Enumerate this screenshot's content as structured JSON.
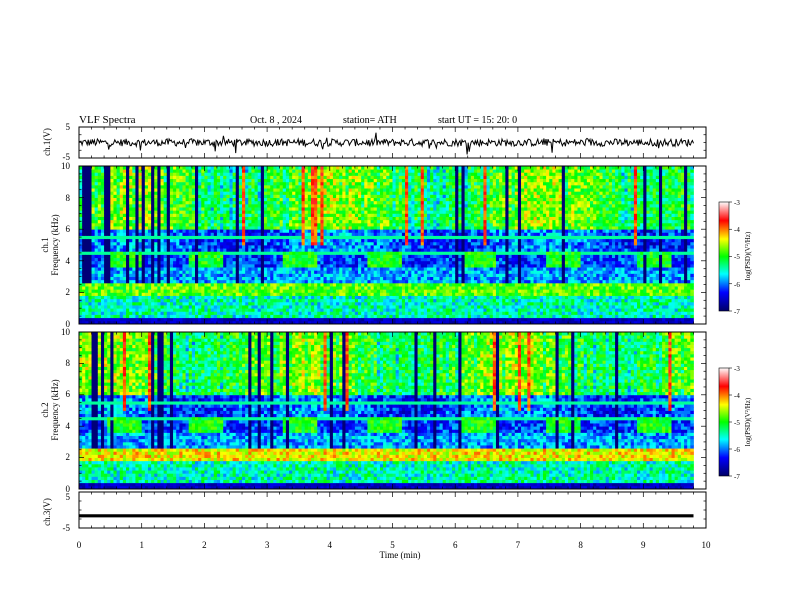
{
  "header": {
    "title": "VLF  Spectra",
    "date": "Oct. 8  , 2024",
    "station": "station= ATH",
    "start_ut": "start  UT  =    15: 20: 0"
  },
  "chart_data": [
    {
      "type": "line",
      "name": "ch1-voltage",
      "ylabel": "ch.1(V)",
      "ylim": [
        -5,
        5
      ],
      "yticks": [
        "5",
        "-5"
      ],
      "xlim": [
        0,
        10
      ],
      "x_end": 9.8,
      "description_values": {
        "mean_level": 0,
        "noise_amplitude": 1.2
      }
    },
    {
      "type": "heatmap",
      "name": "ch1-spectrogram",
      "ylabel_line1": "ch.1",
      "ylabel_line2": "Frequency (kHz)",
      "ylim": [
        0,
        10
      ],
      "yticks": [
        "0",
        "2",
        "4",
        "6",
        "8",
        "10"
      ],
      "xlim": [
        0,
        10
      ],
      "x_end": 9.8,
      "colorbar": {
        "label": "log(PSD)(V²/Hz)",
        "range": [
          -7,
          -3
        ],
        "ticks": [
          "-3",
          "-4",
          "-5",
          "-6",
          "-7"
        ],
        "colors": [
          "#000066",
          "#0000ff",
          "#00ffff",
          "#00ff00",
          "#ffff00",
          "#ff0000",
          "#ffffff"
        ]
      },
      "transmitter_bursts_min": [
        0.45,
        1.75,
        3.25,
        4.6,
        6.1,
        7.45,
        8.9
      ],
      "burst_band_khz": [
        3.6,
        4.4
      ]
    },
    {
      "type": "heatmap",
      "name": "ch2-spectrogram",
      "ylabel_line1": "ch.2",
      "ylabel_line2": "Frequency (kHz)",
      "ylim": [
        0,
        10
      ],
      "yticks": [
        "0",
        "2",
        "4",
        "6",
        "8",
        "10"
      ],
      "xlim": [
        0,
        10
      ],
      "x_end": 9.8,
      "colorbar": {
        "label": "log(PSD)(V²/Hz)",
        "range": [
          -7,
          -3
        ],
        "ticks": [
          "-3",
          "-4",
          "-5",
          "-6",
          "-7"
        ],
        "colors": [
          "#000066",
          "#0000ff",
          "#00ffff",
          "#00ff00",
          "#ffff00",
          "#ff0000",
          "#ffffff"
        ]
      },
      "transmitter_bursts_min": [
        0.45,
        1.75,
        3.25,
        4.6,
        6.1,
        7.45,
        8.9
      ],
      "burst_band_khz": [
        3.6,
        4.4
      ]
    },
    {
      "type": "line",
      "name": "ch3-voltage",
      "ylabel": "ch.3(V)",
      "ylim": [
        -5,
        5
      ],
      "yticks": [
        "5",
        "-5"
      ],
      "xlim": [
        0,
        10
      ],
      "x_end": 9.8,
      "xlabel": "Time  (min)",
      "xticks": [
        "0",
        "1",
        "2",
        "3",
        "4",
        "5",
        "6",
        "7",
        "8",
        "9",
        "10"
      ],
      "description_values": {
        "mean_level": -1.6,
        "noise_amplitude": 0
      }
    }
  ]
}
